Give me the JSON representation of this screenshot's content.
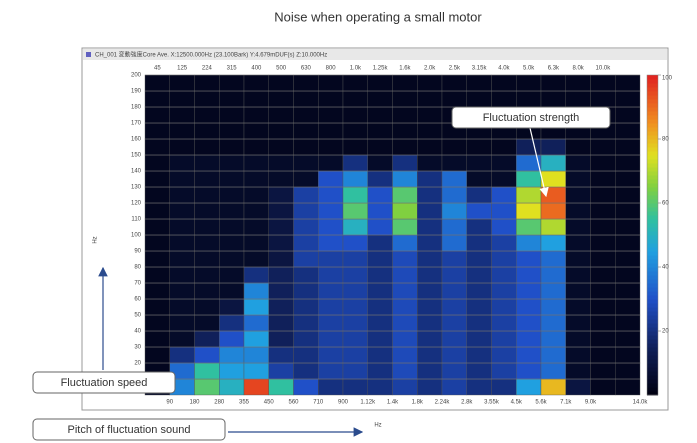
{
  "chart_data": {
    "type": "heatmap",
    "title": "Noise when operating a small motor",
    "header_text": "CH_001  変動強度Core  Ave. X:12500.000Hz (23.100Bark) Y:4.679mDUF(s) Z:10.000Hz",
    "categories": [
      "45",
      "125",
      "224",
      "315",
      "400",
      "500",
      "630",
      "800",
      "1.0k",
      "1.25k",
      "1.6k",
      "2.0k",
      "2.5k",
      "3.15k",
      "4.0k",
      "5.0k",
      "6.3k",
      "8.0k",
      "10.0k",
      null
    ],
    "x_edge_labels": [
      "90",
      "180",
      "280",
      "355",
      "450",
      "560",
      "710",
      "900",
      "1.12k",
      "1.4k",
      "1.8k",
      "2.24k",
      "2.8k",
      "3.55k",
      "4.5k",
      "5.6k",
      "7.1k",
      "9.0k",
      null,
      "14.0k"
    ],
    "xlabel": "Hz",
    "ylabel": "Hz",
    "ylim": [
      0,
      200
    ],
    "yticks": [
      10,
      20,
      30,
      40,
      50,
      60,
      70,
      80,
      90,
      100,
      110,
      120,
      130,
      140,
      150,
      160,
      170,
      180,
      190,
      200
    ],
    "zlim": [
      0,
      100
    ],
    "zticks": [
      20,
      40,
      60,
      80,
      100
    ],
    "z": [
      [
        5,
        40,
        60,
        50,
        95,
        55,
        30,
        20,
        20,
        20,
        25,
        20,
        25,
        20,
        20,
        45,
        80,
        10,
        3,
        3
      ],
      [
        3,
        35,
        55,
        45,
        45,
        25,
        20,
        25,
        25,
        20,
        28,
        20,
        25,
        20,
        25,
        30,
        35,
        5,
        3,
        3
      ],
      [
        3,
        20,
        30,
        40,
        40,
        20,
        20,
        25,
        25,
        20,
        28,
        20,
        25,
        20,
        25,
        30,
        35,
        5,
        3,
        3
      ],
      [
        3,
        5,
        15,
        30,
        45,
        15,
        20,
        25,
        25,
        20,
        28,
        20,
        25,
        20,
        25,
        30,
        35,
        5,
        3,
        3
      ],
      [
        3,
        5,
        5,
        20,
        35,
        15,
        20,
        25,
        25,
        20,
        28,
        20,
        25,
        20,
        25,
        30,
        35,
        5,
        3,
        3
      ],
      [
        3,
        5,
        5,
        10,
        45,
        15,
        20,
        25,
        25,
        20,
        28,
        20,
        25,
        20,
        25,
        30,
        35,
        5,
        3,
        3
      ],
      [
        3,
        5,
        5,
        5,
        40,
        15,
        20,
        25,
        25,
        20,
        28,
        20,
        25,
        20,
        25,
        30,
        35,
        5,
        3,
        3
      ],
      [
        3,
        5,
        5,
        5,
        20,
        15,
        20,
        25,
        25,
        20,
        28,
        20,
        25,
        20,
        25,
        30,
        35,
        5,
        3,
        3
      ],
      [
        3,
        5,
        5,
        5,
        5,
        10,
        25,
        25,
        25,
        20,
        28,
        20,
        25,
        20,
        25,
        30,
        35,
        5,
        3,
        3
      ],
      [
        3,
        5,
        5,
        5,
        5,
        10,
        25,
        30,
        30,
        20,
        35,
        20,
        35,
        20,
        25,
        40,
        45,
        5,
        3,
        3
      ],
      [
        3,
        5,
        5,
        5,
        5,
        10,
        25,
        30,
        50,
        30,
        60,
        20,
        35,
        20,
        30,
        60,
        70,
        5,
        3,
        3
      ],
      [
        3,
        5,
        5,
        5,
        5,
        10,
        25,
        30,
        60,
        30,
        65,
        20,
        40,
        30,
        30,
        75,
        90,
        5,
        3,
        3
      ],
      [
        3,
        5,
        5,
        5,
        5,
        10,
        25,
        30,
        55,
        30,
        60,
        20,
        35,
        20,
        30,
        70,
        92,
        5,
        3,
        3
      ],
      [
        3,
        5,
        5,
        5,
        5,
        5,
        5,
        30,
        40,
        20,
        40,
        20,
        35,
        5,
        5,
        55,
        75,
        5,
        3,
        3
      ],
      [
        3,
        5,
        5,
        5,
        5,
        5,
        5,
        5,
        20,
        5,
        20,
        5,
        5,
        5,
        5,
        35,
        50,
        5,
        3,
        3
      ],
      [
        3,
        3,
        3,
        3,
        3,
        3,
        3,
        3,
        3,
        3,
        3,
        3,
        3,
        3,
        3,
        15,
        15,
        3,
        3,
        3
      ],
      [
        3,
        3,
        3,
        3,
        3,
        3,
        3,
        3,
        3,
        3,
        3,
        3,
        3,
        3,
        3,
        3,
        3,
        3,
        3,
        3
      ],
      [
        3,
        3,
        3,
        3,
        3,
        3,
        3,
        3,
        3,
        3,
        3,
        3,
        3,
        3,
        3,
        3,
        3,
        3,
        3,
        3
      ],
      [
        3,
        3,
        3,
        3,
        3,
        3,
        3,
        3,
        3,
        3,
        3,
        3,
        3,
        3,
        3,
        3,
        3,
        3,
        3,
        3
      ],
      [
        3,
        3,
        3,
        3,
        3,
        3,
        3,
        3,
        3,
        3,
        3,
        3,
        3,
        3,
        3,
        3,
        3,
        3,
        3,
        3
      ]
    ],
    "annotations": [
      "Fluctuation strength",
      "Fluctuation speed",
      "Pitch of fluctuation sound"
    ]
  }
}
